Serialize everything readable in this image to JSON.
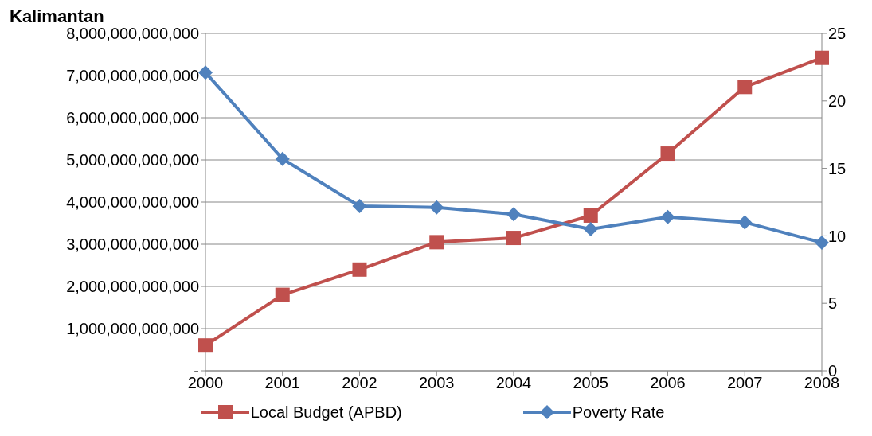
{
  "chart_data": {
    "type": "line",
    "title": "Kalimantan",
    "categories": [
      "2000",
      "2001",
      "2002",
      "2003",
      "2004",
      "2005",
      "2006",
      "2007",
      "2008"
    ],
    "series": [
      {
        "name": "Local Budget (APBD)",
        "color": "#c0504d",
        "marker": "square",
        "values": [
          600000000000,
          1800000000000,
          2400000000000,
          3050000000000,
          3150000000000,
          3680000000000,
          5150000000000,
          6730000000000,
          7420000000000
        ]
      },
      {
        "name": "Poverty Rate",
        "color": "#4f81bd",
        "marker": "diamond",
        "axis": "y2",
        "values": [
          22.1,
          15.7,
          12.2,
          12.1,
          11.6,
          10.5,
          11.4,
          11.0,
          9.5
        ]
      }
    ],
    "ylim": [
      0,
      8000000000000
    ],
    "yticks": [
      {
        "value": 0,
        "label": "-"
      },
      {
        "value": 1000000000000,
        "label": "1,000,000,000,000"
      },
      {
        "value": 2000000000000,
        "label": "2,000,000,000,000"
      },
      {
        "value": 3000000000000,
        "label": "3,000,000,000,000"
      },
      {
        "value": 4000000000000,
        "label": "4,000,000,000,000"
      },
      {
        "value": 5000000000000,
        "label": "5,000,000,000,000"
      },
      {
        "value": 6000000000000,
        "label": "6,000,000,000,000"
      },
      {
        "value": 7000000000000,
        "label": "7,000,000,000,000"
      },
      {
        "value": 8000000000000,
        "label": "8,000,000,000,000"
      }
    ],
    "y2lim": [
      0,
      25
    ],
    "y2ticks": [
      0,
      5,
      10,
      15,
      20,
      25
    ],
    "grid": "y",
    "legend": "bottom",
    "line_style": "solid"
  }
}
